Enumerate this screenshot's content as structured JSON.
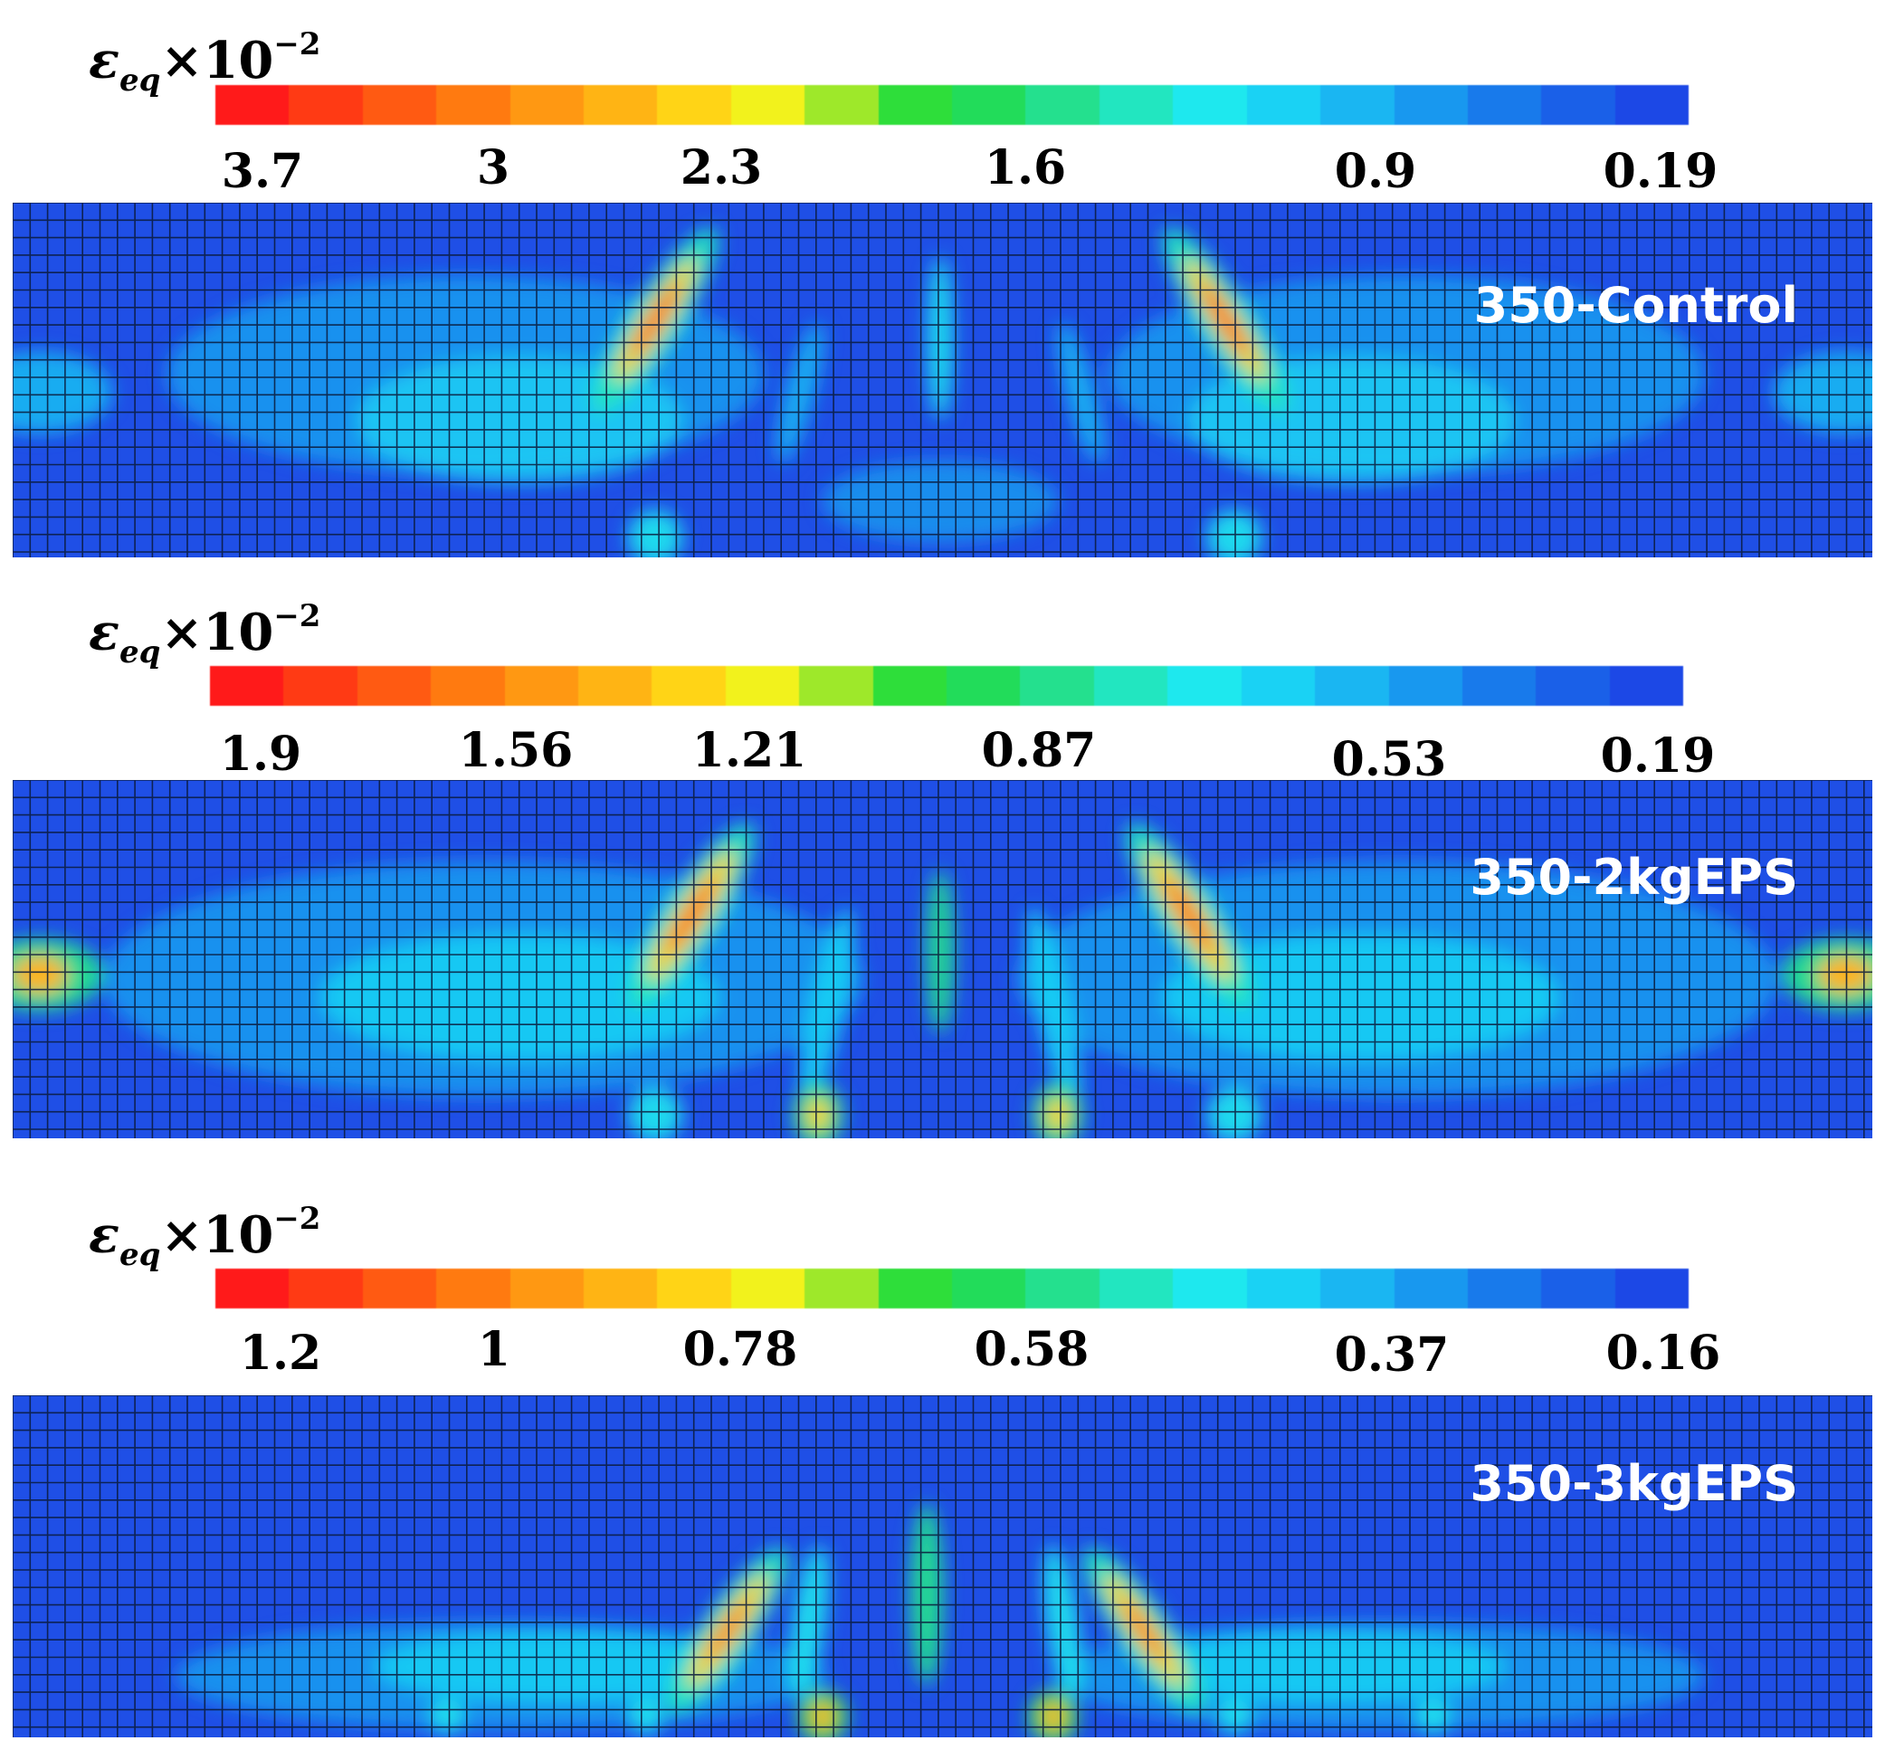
{
  "legend_symbol": "ε",
  "legend_subscript": "eq",
  "legend_multiplier": "×10",
  "legend_exponent": "−2",
  "colormap": [
    "#ff1a1a",
    "#ff3a14",
    "#ff5a12",
    "#ff7a10",
    "#ff9812",
    "#ffb414",
    "#ffd416",
    "#f2f21c",
    "#9ee82a",
    "#2ede3a",
    "#22dc5a",
    "#24e08e",
    "#22e6c0",
    "#1ee8ee",
    "#1ad2f4",
    "#1ab6f2",
    "#1898ef",
    "#187aeb",
    "#1a60e8",
    "#1c48e6"
  ],
  "mesh_background": "#1f4fe6",
  "panels": [
    {
      "specimen": "350-Control",
      "ticks": [
        "3.7",
        "3",
        "2.3",
        "1.6",
        "0.9",
        "0.19"
      ]
    },
    {
      "specimen": "350-2kgEPS",
      "ticks": [
        "1.9",
        "1.56",
        "1.21",
        "0.87",
        "0.53",
        "0.19"
      ]
    },
    {
      "specimen": "350-3kgEPS",
      "ticks": [
        "1.2",
        "1",
        "0.78",
        "0.58",
        "0.37",
        "0.16"
      ]
    }
  ]
}
